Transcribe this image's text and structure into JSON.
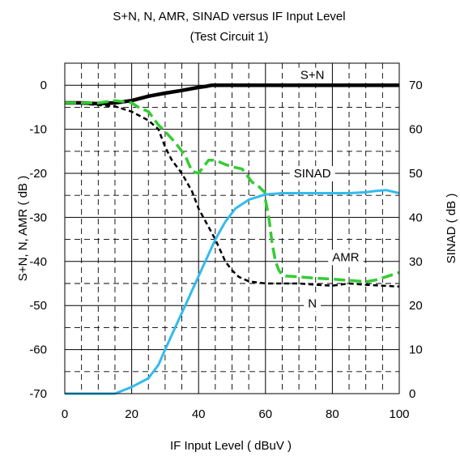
{
  "chart_data": {
    "type": "line",
    "title": "S+N, N, AMR, SINAD versus IF Input Level",
    "subtitle": "(Test Circuit 1)",
    "xlabel": "IF Input Level ( dBuV )",
    "ylabel": "S+N, N, AMR ( dB )",
    "y2label": "SINAD ( dB )",
    "xlim": [
      0,
      100
    ],
    "ylim": [
      -70,
      5
    ],
    "y2lim": [
      0,
      75
    ],
    "x_ticks": [
      0,
      20,
      40,
      60,
      80,
      100
    ],
    "y_ticks": [
      0,
      -10,
      -20,
      -30,
      -40,
      -50,
      -60,
      -70
    ],
    "y2_ticks": [
      70,
      60,
      50,
      40,
      30,
      20,
      10,
      0
    ],
    "grid": true,
    "series": [
      {
        "name": "S+N",
        "axis": "left",
        "color": "#000000",
        "style": "solid",
        "points": [
          [
            0,
            -4
          ],
          [
            5,
            -4
          ],
          [
            10,
            -4.2
          ],
          [
            15,
            -4
          ],
          [
            20,
            -3.5
          ],
          [
            25,
            -2.5
          ],
          [
            30,
            -1.8
          ],
          [
            35,
            -1.2
          ],
          [
            40,
            -0.5
          ],
          [
            42,
            -0.3
          ],
          [
            44,
            0
          ],
          [
            50,
            0
          ],
          [
            60,
            0
          ],
          [
            70,
            0
          ],
          [
            80,
            0
          ],
          [
            90,
            0
          ],
          [
            100,
            0
          ]
        ]
      },
      {
        "name": "N",
        "axis": "left",
        "color": "#000000",
        "style": "dashed",
        "points": [
          [
            0,
            -4
          ],
          [
            5,
            -4.2
          ],
          [
            10,
            -4.5
          ],
          [
            15,
            -4.8
          ],
          [
            20,
            -6
          ],
          [
            25,
            -8
          ],
          [
            28,
            -10
          ],
          [
            30,
            -14
          ],
          [
            32,
            -17
          ],
          [
            35,
            -20
          ],
          [
            38,
            -24
          ],
          [
            40,
            -28
          ],
          [
            45,
            -35
          ],
          [
            48,
            -40
          ],
          [
            50,
            -42
          ],
          [
            52,
            -43.5
          ],
          [
            55,
            -44.5
          ],
          [
            60,
            -45
          ],
          [
            65,
            -45
          ],
          [
            70,
            -45
          ],
          [
            75,
            -45.3
          ],
          [
            80,
            -45.5
          ],
          [
            85,
            -45
          ],
          [
            90,
            -45.3
          ],
          [
            95,
            -45.5
          ],
          [
            100,
            -45.7
          ]
        ]
      },
      {
        "name": "AMR",
        "axis": "left",
        "color": "#33cc33",
        "style": "dashed",
        "points": [
          [
            60,
            -26
          ],
          [
            61,
            -30
          ],
          [
            62,
            -36
          ],
          [
            63,
            -40
          ],
          [
            64,
            -42
          ],
          [
            65,
            -43
          ],
          [
            66,
            -43.3
          ],
          [
            70,
            -43.5
          ],
          [
            75,
            -43.8
          ],
          [
            80,
            -44
          ],
          [
            85,
            -44.3
          ],
          [
            90,
            -44.6
          ],
          [
            93,
            -44.2
          ],
          [
            96,
            -43.5
          ],
          [
            100,
            -42.5
          ]
        ]
      },
      {
        "name": "SINAD",
        "axis": "right",
        "color": "#33cc33",
        "style": "dashed",
        "points": [
          [
            0,
            66
          ],
          [
            5,
            66
          ],
          [
            10,
            66
          ],
          [
            15,
            66.5
          ],
          [
            20,
            66
          ],
          [
            22,
            65
          ],
          [
            25,
            64
          ],
          [
            28,
            61
          ],
          [
            30,
            59.5
          ],
          [
            33,
            57
          ],
          [
            36,
            54
          ],
          [
            38,
            50.5
          ],
          [
            40,
            50
          ],
          [
            43,
            53
          ],
          [
            45,
            53
          ],
          [
            48,
            52
          ],
          [
            50,
            51.5
          ],
          [
            53,
            51
          ],
          [
            56,
            48
          ],
          [
            58,
            47
          ],
          [
            60,
            45.5
          ]
        ]
      },
      {
        "name": "",
        "axis": "left",
        "color": "#33bbee",
        "style": "solid",
        "points": [
          [
            0,
            -70
          ],
          [
            5,
            -70
          ],
          [
            10,
            -70
          ],
          [
            15,
            -70
          ],
          [
            20,
            -68.5
          ],
          [
            25,
            -66.5
          ],
          [
            28,
            -63.5
          ],
          [
            30,
            -60
          ],
          [
            33,
            -55
          ],
          [
            36,
            -50
          ],
          [
            39,
            -45
          ],
          [
            42,
            -40
          ],
          [
            45,
            -35
          ],
          [
            48,
            -31
          ],
          [
            51,
            -28
          ],
          [
            55,
            -26
          ],
          [
            60,
            -24.8
          ],
          [
            65,
            -24.5
          ],
          [
            70,
            -24.5
          ],
          [
            75,
            -24.5
          ],
          [
            80,
            -24.5
          ],
          [
            85,
            -24.5
          ],
          [
            90,
            -24.3
          ],
          [
            93,
            -24
          ],
          [
            96,
            -23.8
          ],
          [
            100,
            -24.5
          ]
        ]
      }
    ],
    "annotations": [
      {
        "text": "S+N",
        "x": 74,
        "y": 2.3
      },
      {
        "text": "SINAD",
        "x": 74,
        "y": -20
      },
      {
        "text": "AMR",
        "x": 84,
        "y": -39
      },
      {
        "text": "N",
        "x": 74,
        "y": -49.5
      }
    ]
  }
}
